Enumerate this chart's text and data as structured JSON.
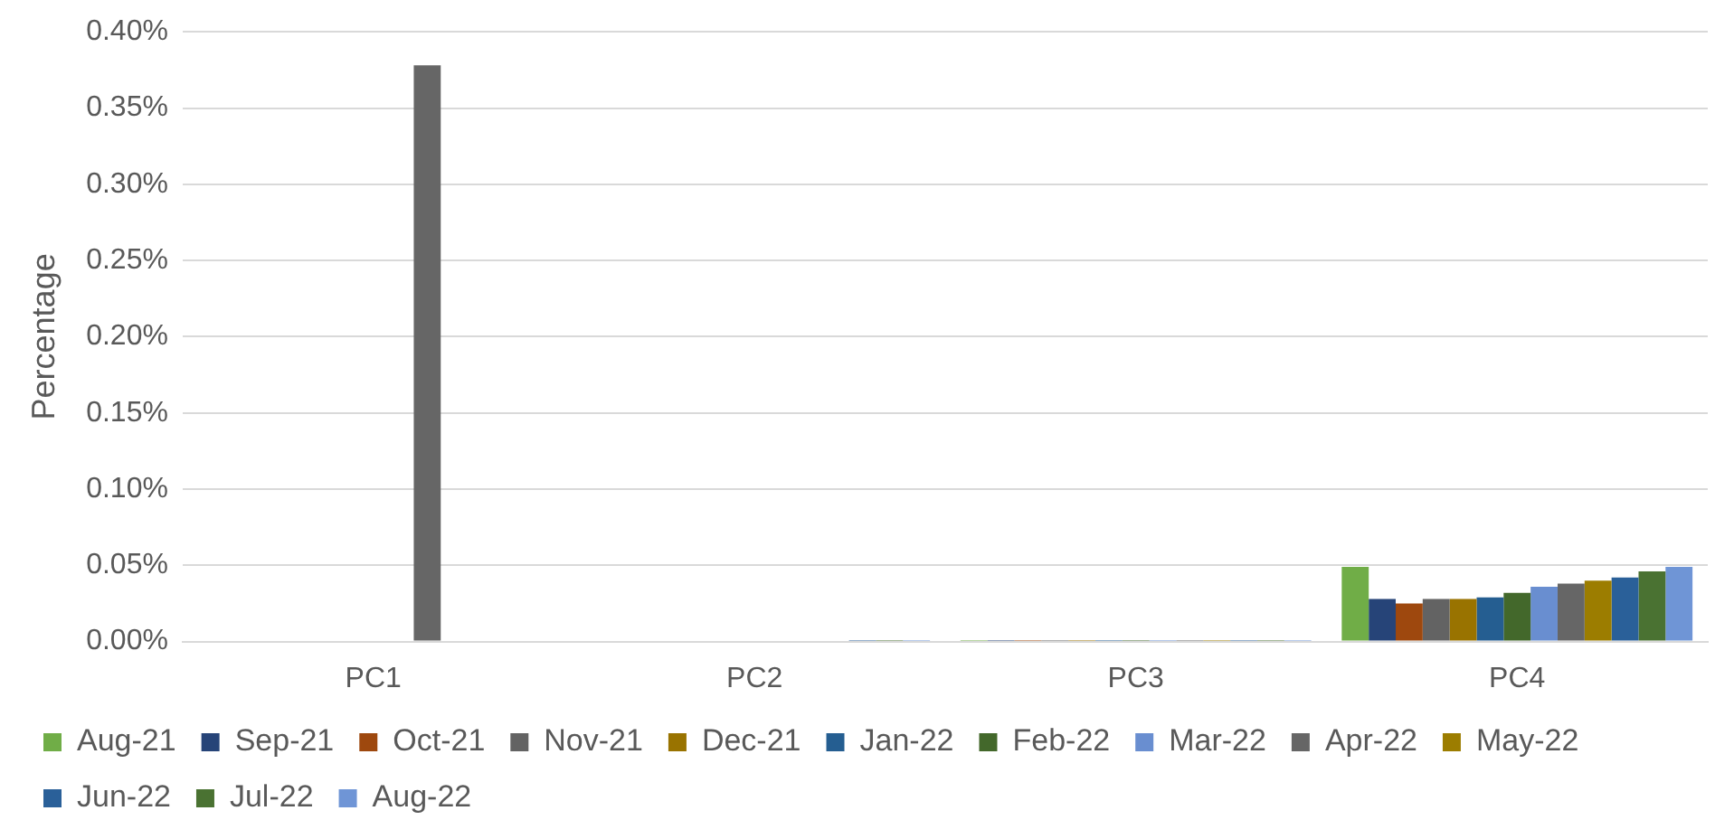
{
  "chart_data": {
    "type": "bar",
    "ylabel": "Percentage",
    "categories": [
      "PC1",
      "PC2",
      "PC3",
      "PC4"
    ],
    "ylim": [
      0,
      0.4
    ],
    "yticks": [
      {
        "value": 0,
        "label": "0.00%"
      },
      {
        "value": 0.05,
        "label": "0.05%"
      },
      {
        "value": 0.1,
        "label": "0.10%"
      },
      {
        "value": 0.15,
        "label": "0.15%"
      },
      {
        "value": 0.2,
        "label": "0.20%"
      },
      {
        "value": 0.25,
        "label": "0.25%"
      },
      {
        "value": 0.3,
        "label": "0.30%"
      },
      {
        "value": 0.35,
        "label": "0.35%"
      },
      {
        "value": 0.4,
        "label": "0.40%"
      }
    ],
    "grid": "y",
    "legend": "bottom",
    "series": [
      {
        "name": "Aug-21",
        "color": "#70ad47",
        "values": [
          0,
          0,
          0.001,
          0.049
        ]
      },
      {
        "name": "Sep-21",
        "color": "#264478",
        "values": [
          0,
          0,
          0.001,
          0.028
        ]
      },
      {
        "name": "Oct-21",
        "color": "#9e480e",
        "values": [
          0,
          0,
          0.001,
          0.025
        ]
      },
      {
        "name": "Nov-21",
        "color": "#636363",
        "values": [
          0,
          0,
          0.001,
          0.028
        ]
      },
      {
        "name": "Dec-21",
        "color": "#997300",
        "values": [
          0,
          0,
          0.001,
          0.028
        ]
      },
      {
        "name": "Jan-22",
        "color": "#255e91",
        "values": [
          0,
          0,
          0.001,
          0.029
        ]
      },
      {
        "name": "Feb-22",
        "color": "#43682b",
        "values": [
          0,
          0,
          0.001,
          0.032
        ]
      },
      {
        "name": "Mar-22",
        "color": "#698ed0",
        "values": [
          0,
          0,
          0.001,
          0.036
        ]
      },
      {
        "name": "Apr-22",
        "color": "#666666",
        "values": [
          0.378,
          0,
          0.001,
          0.038
        ]
      },
      {
        "name": "May-22",
        "color": "#9c7d00",
        "values": [
          0,
          0,
          0.001,
          0.04
        ]
      },
      {
        "name": "Jun-22",
        "color": "#2a6099",
        "values": [
          0,
          0.001,
          0.001,
          0.042
        ]
      },
      {
        "name": "Jul-22",
        "color": "#4a7232",
        "values": [
          0,
          0.001,
          0.001,
          0.046
        ]
      },
      {
        "name": "Aug-22",
        "color": "#6f95d6",
        "values": [
          0,
          0.001,
          0.001,
          0.049
        ]
      }
    ]
  }
}
